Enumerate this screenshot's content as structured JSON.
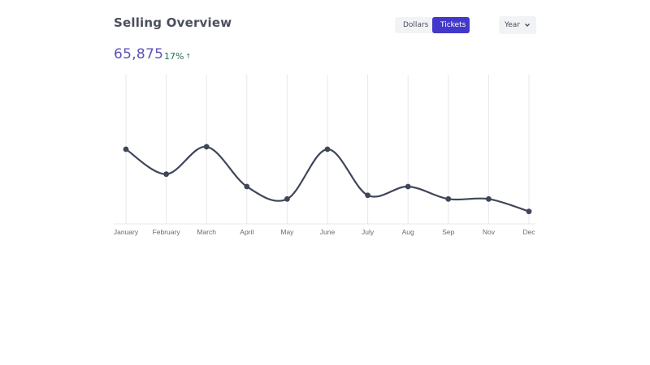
{
  "header": {
    "title": "Selling Overview",
    "toggle": {
      "dollars_label": "Dollars",
      "tickets_label": "Tickets",
      "active": "Tickets"
    },
    "period_label": "Year"
  },
  "summary": {
    "total": "65,875",
    "change": "17%",
    "change_arrow": "↑"
  },
  "colors": {
    "accent": "#4338ca",
    "line": "#3f4658",
    "total": "#5b52b8",
    "change": "#1f6f5c",
    "grid": "#e6e8eb"
  },
  "chart_data": {
    "type": "line",
    "categories": [
      "January",
      "February",
      "March",
      "April",
      "May",
      "June",
      "July",
      "Aug",
      "Sep",
      "Nov",
      "Dec"
    ],
    "values": [
      6.0,
      4.0,
      6.2,
      3.0,
      2.0,
      6.0,
      2.3,
      3.0,
      2.0,
      2.0,
      1.0
    ],
    "ylim": [
      0,
      12
    ],
    "grid": "vertical",
    "title": "",
    "xlabel": "",
    "ylabel": ""
  }
}
